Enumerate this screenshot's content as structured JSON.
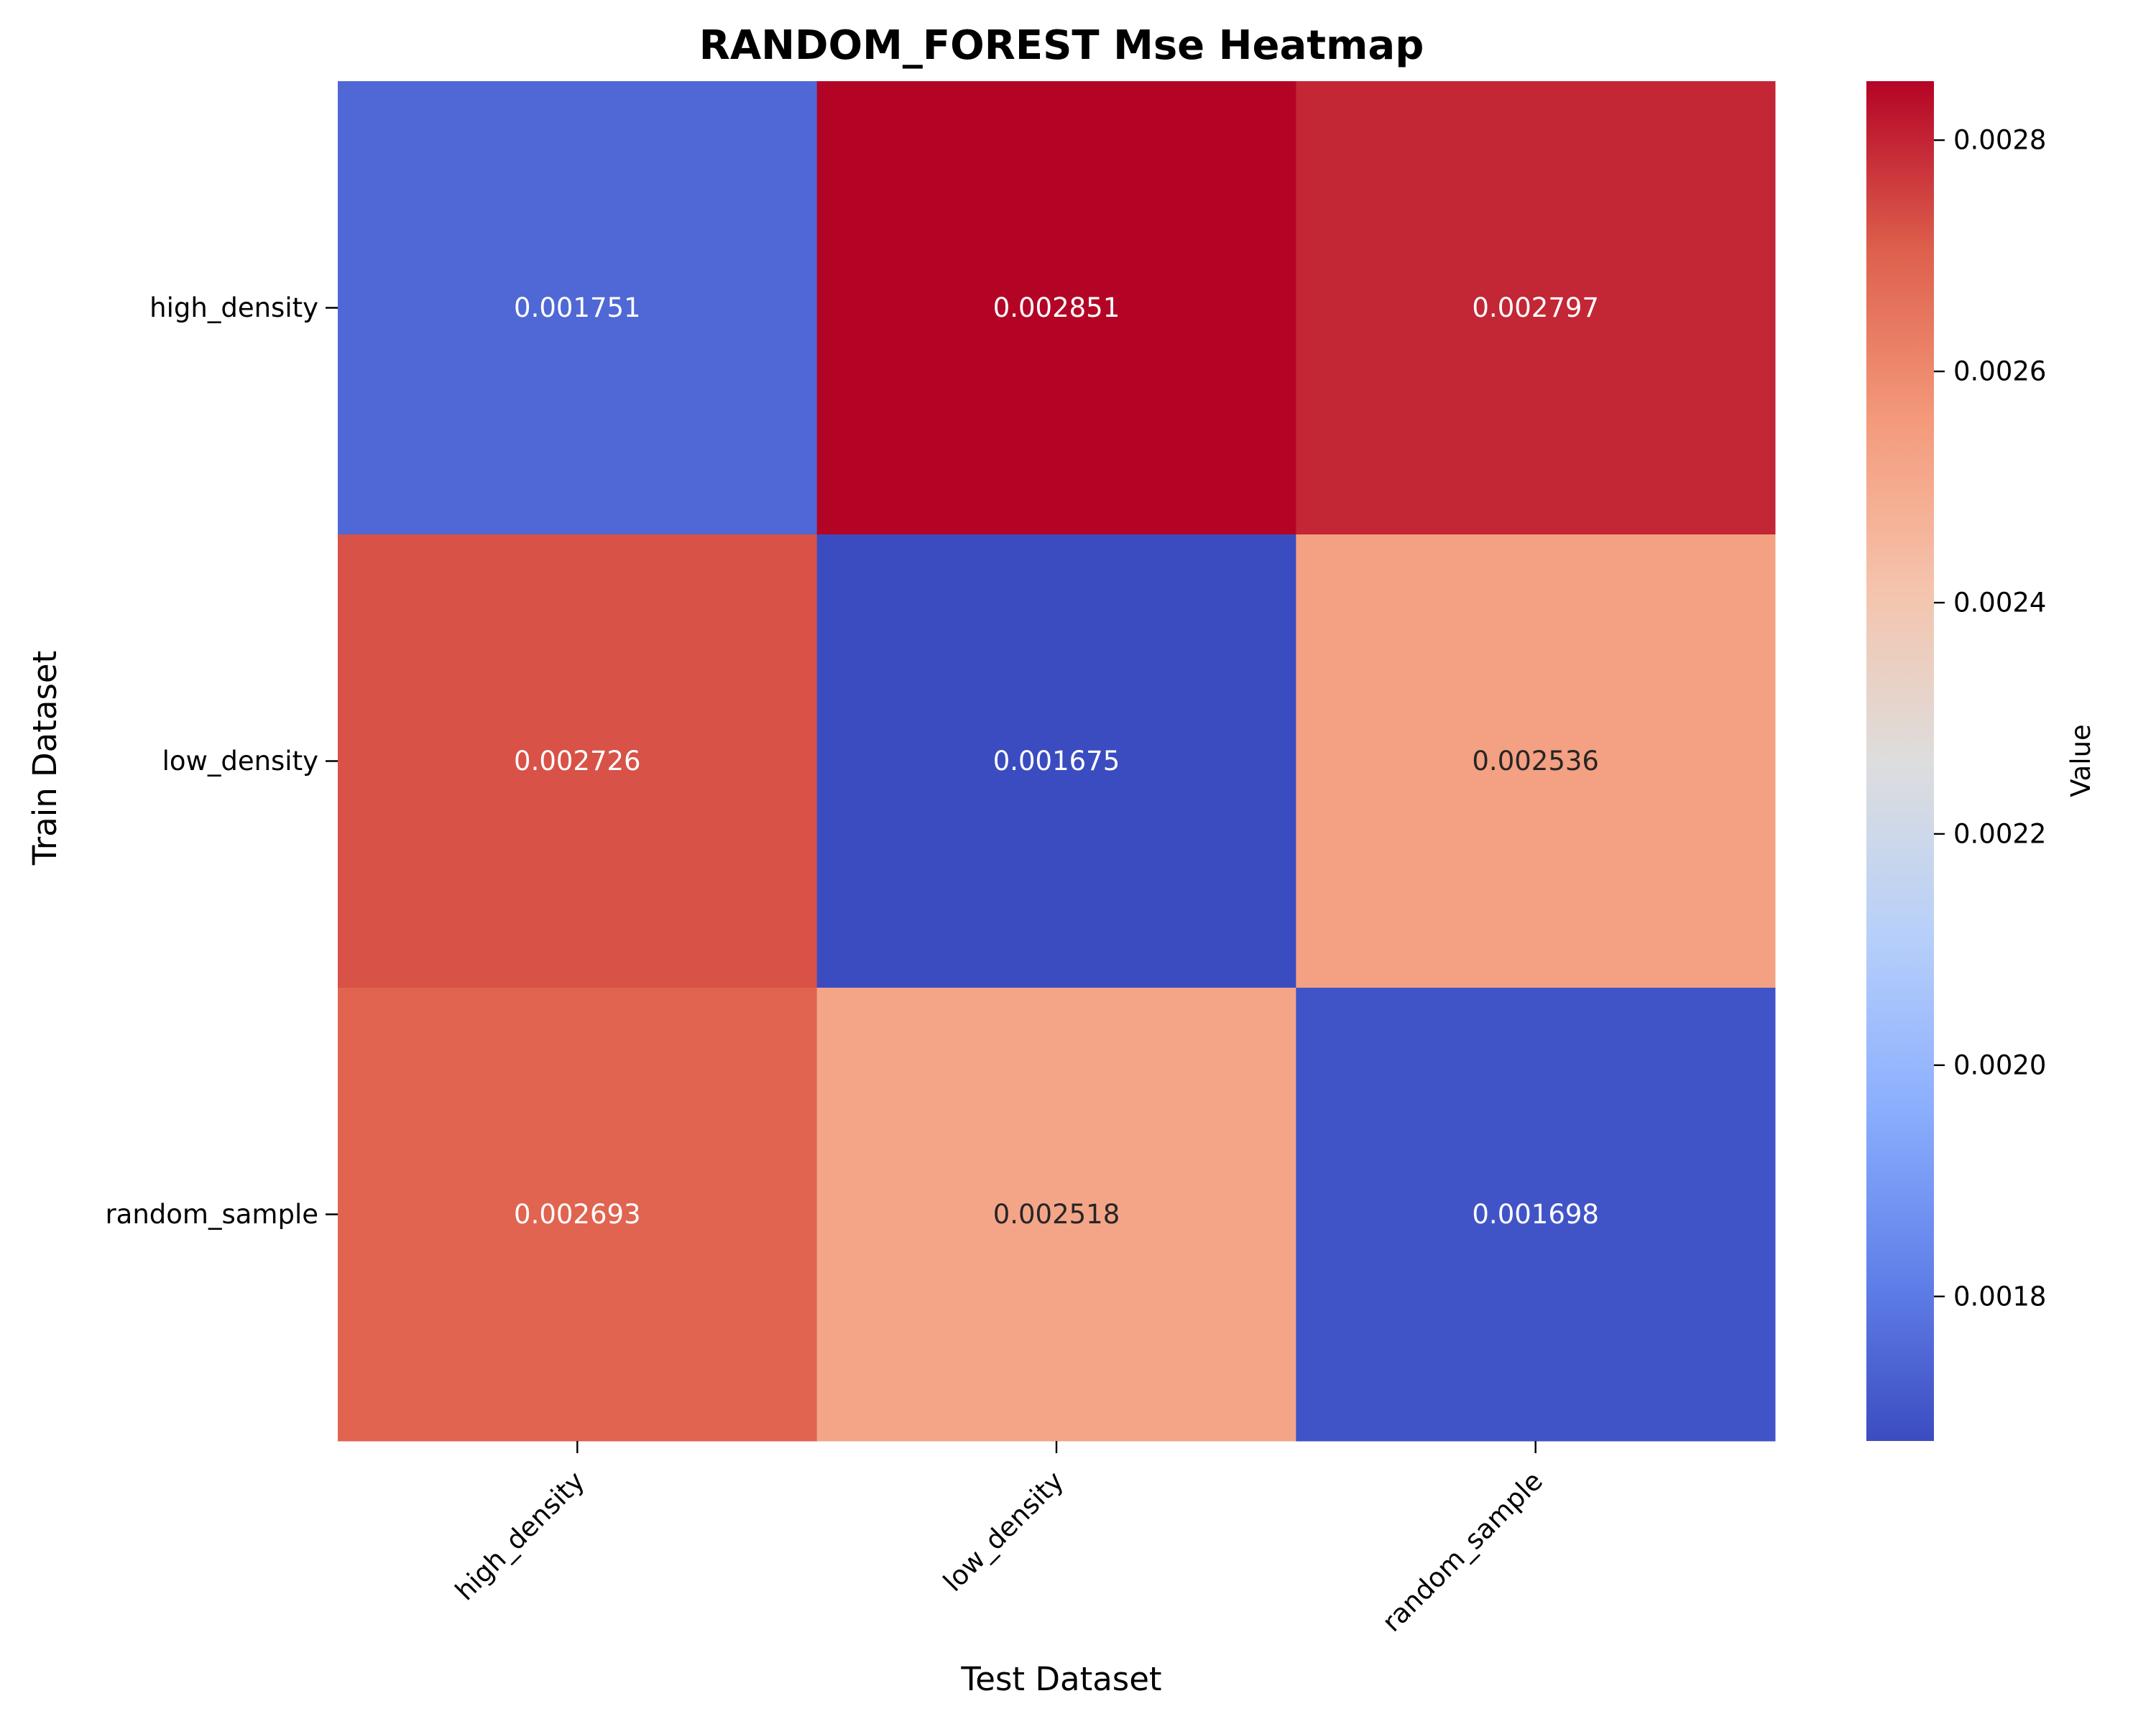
{
  "chart_data": {
    "type": "heatmap",
    "title": "RANDOM_FOREST Mse Heatmap",
    "xlabel": "Test Dataset",
    "ylabel": "Train Dataset",
    "x_categories": [
      "high_density",
      "low_density",
      "random_sample"
    ],
    "y_categories": [
      "high_density",
      "low_density",
      "random_sample"
    ],
    "values": [
      [
        0.001751,
        0.002851,
        0.002797
      ],
      [
        0.002726,
        0.001675,
        0.002536
      ],
      [
        0.002693,
        0.002518,
        0.001698
      ]
    ],
    "value_labels": [
      [
        "0.001751",
        "0.002851",
        "0.002797"
      ],
      [
        "0.002726",
        "0.001675",
        "0.002536"
      ],
      [
        "0.002693",
        "0.002518",
        "0.001698"
      ]
    ],
    "colormap": "coolwarm",
    "colorbar": {
      "label": "Value",
      "range": [
        0.001675,
        0.002851
      ],
      "ticks": [
        0.0018,
        0.002,
        0.0022,
        0.0024,
        0.0026,
        0.0028
      ],
      "tick_labels": [
        "0.0018",
        "0.0020",
        "0.0022",
        "0.0024",
        "0.0026",
        "0.0028"
      ]
    },
    "colors": {
      "cold": "#3b4cc0",
      "neutral": "#dddddd",
      "hot": "#b40426"
    }
  }
}
